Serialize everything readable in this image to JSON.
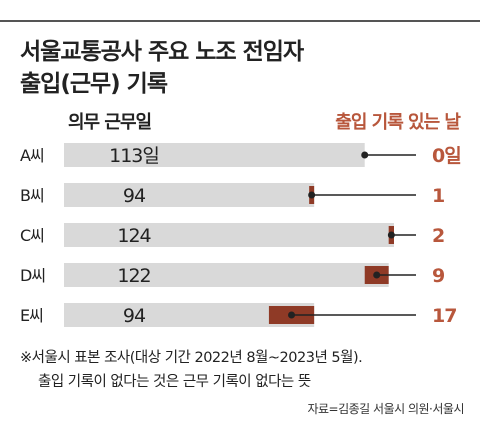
{
  "title": {
    "line1": "서울교통공사 주요 노조 전임자",
    "line2": "출입(근무) 기록"
  },
  "column_headers": {
    "left": "의무 근무일",
    "right": "출입 기록 있는 날"
  },
  "colors": {
    "bar": "#d9d9d9",
    "accent": "#8f3a26",
    "accent_label": "#b8573c",
    "text": "#222222",
    "line": "#222222"
  },
  "chart_data": {
    "type": "bar",
    "orientation": "horizontal",
    "categories": [
      "A씨",
      "B씨",
      "C씨",
      "D씨",
      "E씨"
    ],
    "series": [
      {
        "name": "의무 근무일",
        "values": [
          113,
          94,
          124,
          122,
          94
        ],
        "labels": [
          "113일",
          "94",
          "124",
          "122",
          "94"
        ]
      },
      {
        "name": "출입 기록 있는 날",
        "values": [
          0,
          1,
          2,
          9,
          17
        ],
        "labels": [
          "0일",
          "1",
          "2",
          "9",
          "17"
        ]
      }
    ],
    "xlim": [
      0,
      124
    ]
  },
  "notes": {
    "line1": "※서울시 표본 조사(대상 기간 2022년 8월~2023년 5월).",
    "line2": "출입 기록이 없다는 것은 근무 기록이 없다는 뜻"
  },
  "source": "자료=김종길 서울시 의원·서울시"
}
